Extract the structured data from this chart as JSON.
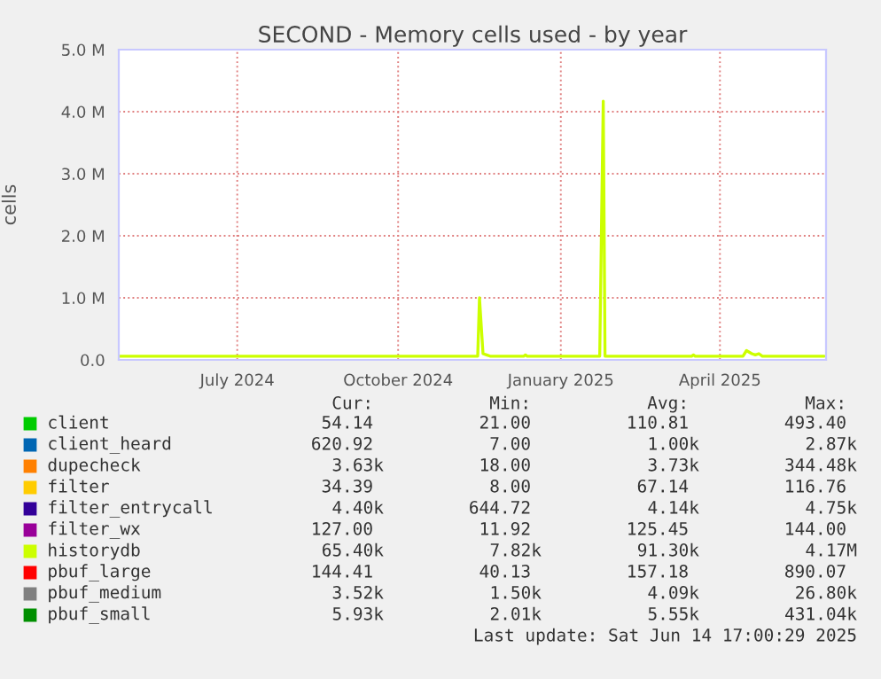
{
  "chart_data": {
    "type": "line",
    "title": "SECOND - Memory cells used - by year",
    "ylabel": "cells",
    "xlim": [
      "2024-05-10",
      "2025-06-14"
    ],
    "xticks": [
      {
        "value": "2024-07-16",
        "label": "July 2024"
      },
      {
        "value": "2024-10-15",
        "label": "October 2024"
      },
      {
        "value": "2025-01-15",
        "label": "January 2025"
      },
      {
        "value": "2025-04-15",
        "label": "April 2025"
      }
    ],
    "ylim": [
      0,
      5000000
    ],
    "yticks": [
      {
        "value": 0,
        "label": "0.0"
      },
      {
        "value": 1000000,
        "label": "1.0 M"
      },
      {
        "value": 2000000,
        "label": "2.0 M"
      },
      {
        "value": 3000000,
        "label": "3.0 M"
      },
      {
        "value": 4000000,
        "label": "4.0 M"
      },
      {
        "value": 5000000,
        "label": "5.0 M"
      }
    ],
    "grid": true,
    "legend": "bottom",
    "marker": "none",
    "line_style": "solid",
    "series": [
      {
        "name": "client",
        "color": "#00cc00",
        "values": [
          null
        ]
      },
      {
        "name": "client_heard",
        "color": "#0066b3",
        "values": [
          null
        ]
      },
      {
        "name": "dupecheck",
        "color": "#ff8000",
        "values": [
          null
        ]
      },
      {
        "name": "filter",
        "color": "#ffcc00",
        "values": [
          null
        ]
      },
      {
        "name": "filter_entrycall",
        "color": "#330099",
        "values": [
          null
        ]
      },
      {
        "name": "filter_wx",
        "color": "#990099",
        "values": [
          null
        ]
      },
      {
        "name": "historydb",
        "color": "#ccff00",
        "x": [
          "2024-05-10",
          "2024-11-29",
          "2024-11-30",
          "2024-12-02",
          "2024-12-04",
          "2024-12-06",
          "2024-12-25",
          "2024-12-26",
          "2024-12-27",
          "2025-02-06",
          "2025-02-08",
          "2025-02-09",
          "2025-03-30",
          "2025-03-31",
          "2025-04-01",
          "2025-04-28",
          "2025-04-30",
          "2025-05-03",
          "2025-05-05",
          "2025-05-07",
          "2025-05-09",
          "2025-06-13"
        ],
        "values": [
          60000,
          60000,
          1000000,
          100000,
          80000,
          60000,
          60000,
          80000,
          60000,
          60000,
          4170000,
          60000,
          60000,
          80000,
          60000,
          60000,
          150000,
          100000,
          80000,
          100000,
          60000,
          60000
        ]
      },
      {
        "name": "pbuf_large",
        "color": "#ff0000",
        "values": [
          null
        ]
      },
      {
        "name": "pbuf_medium",
        "color": "#808080",
        "values": [
          null
        ]
      },
      {
        "name": "pbuf_small",
        "color": "#008f00",
        "values": [
          null
        ]
      }
    ],
    "annotations": [
      "Cur: Min: Avg: Max:",
      "54.14 21.00 110.81 493.40",
      "620.92 7.00 1.00k 2.87k",
      "3.63k 18.00 3.73k 344.48k",
      "34.39 8.00 67.14 116.76",
      "4.40k 644.72 4.14k 4.75k",
      "127.00 11.92 125.45 144.00",
      "65.40k 7.82k 91.30k 4.17M",
      "144.41 40.13 157.18 890.07",
      "3.52k 1.50k 4.09k 26.80k",
      "5.93k 2.01k 5.55k 431.04k",
      "Last update: Sat Jun 14 17:00:29 2025"
    ]
  }
}
